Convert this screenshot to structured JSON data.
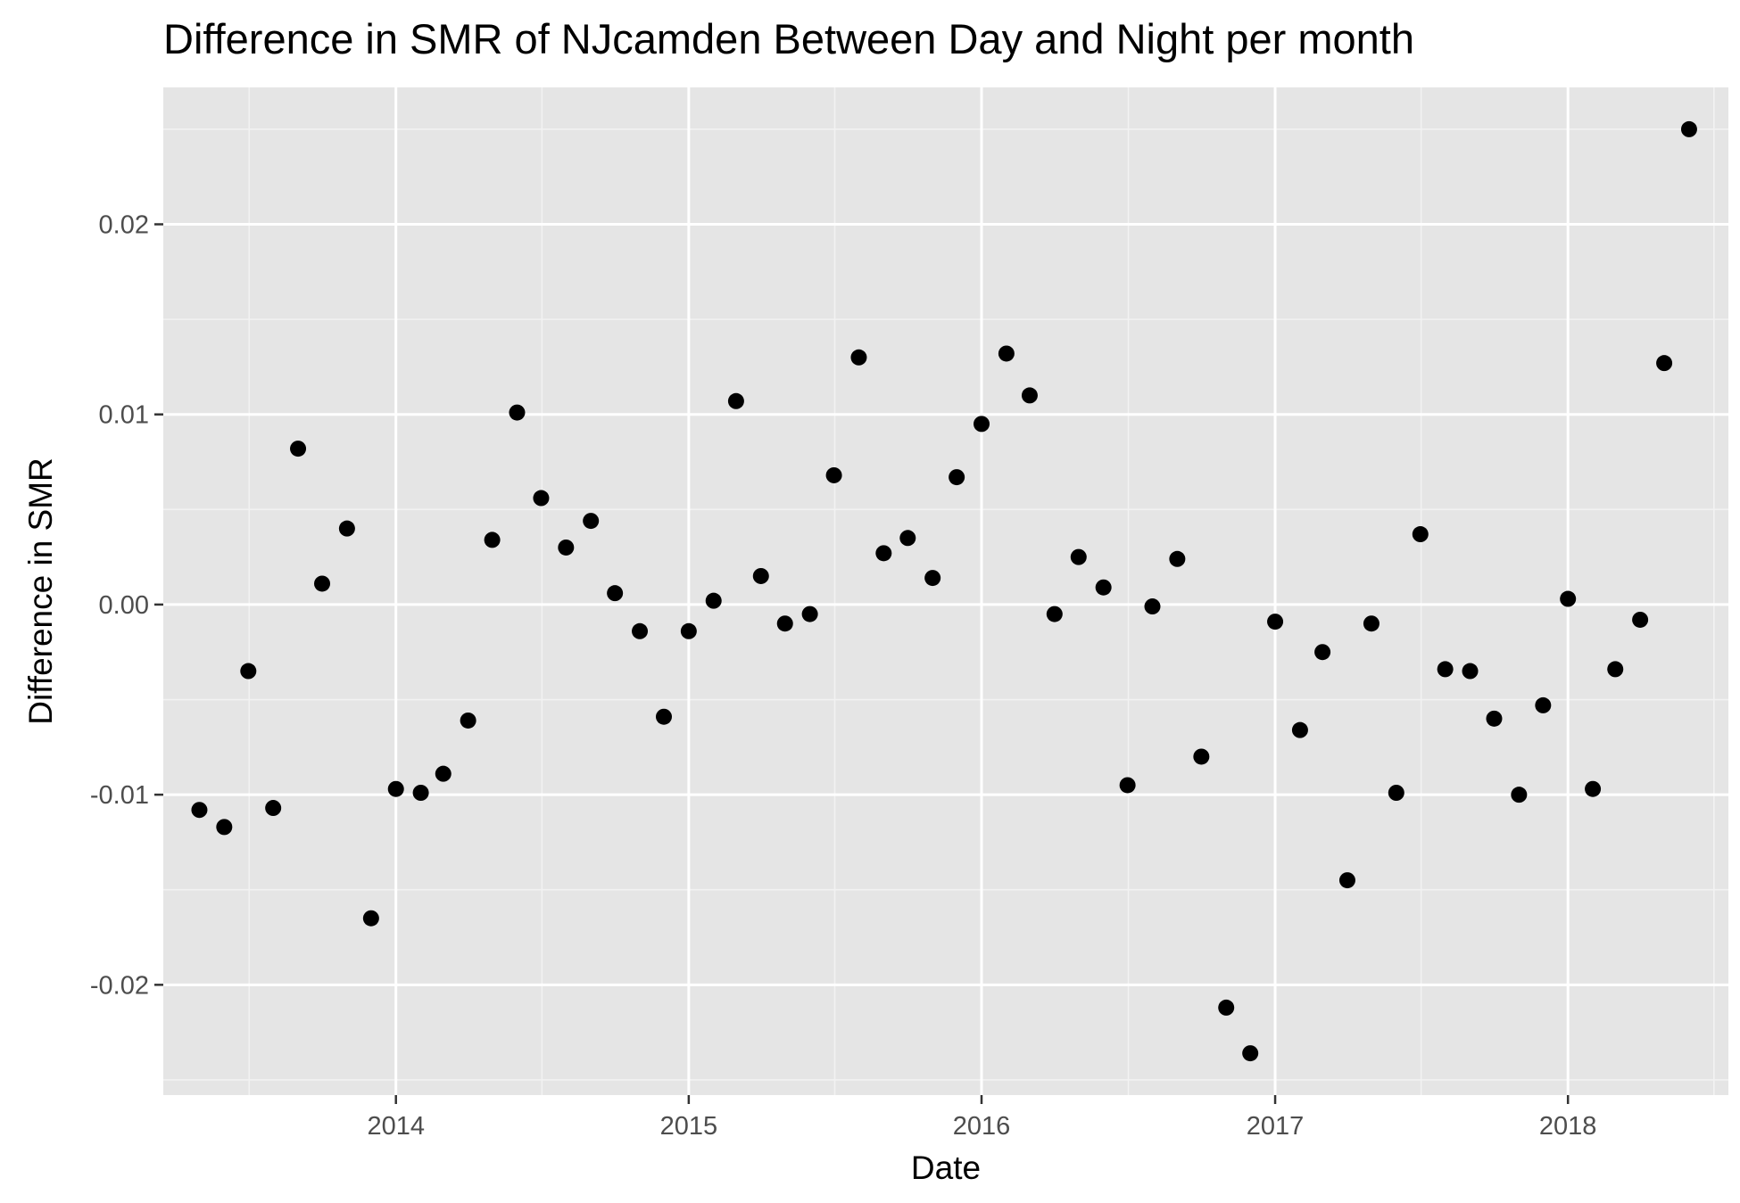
{
  "chart_data": {
    "type": "scatter",
    "title": "Difference in SMR of NJcamden Between Day and Night per month",
    "xlabel": "Date",
    "ylabel": "Difference in SMR",
    "x_tick_labels": [
      "2014",
      "2015",
      "2016",
      "2017",
      "2018"
    ],
    "y_tick_labels": [
      "-0.02",
      "-0.01",
      "0.00",
      "0.01",
      "0.02"
    ],
    "y_ticks": [
      -0.02,
      -0.01,
      0.0,
      0.01,
      0.02
    ],
    "xlim": [
      "2013-03-17",
      "2018-07-20"
    ],
    "ylim": [
      -0.0258,
      0.0272
    ],
    "grid": true,
    "point_color": "#000000",
    "panel_background": "#e5e5e5",
    "series": [
      {
        "name": "SMR difference",
        "points": [
          {
            "x": "2013-05-01",
            "y": -0.0108
          },
          {
            "x": "2013-06-01",
            "y": -0.0117
          },
          {
            "x": "2013-07-01",
            "y": -0.0035
          },
          {
            "x": "2013-08-01",
            "y": -0.0107
          },
          {
            "x": "2013-09-01",
            "y": 0.0082
          },
          {
            "x": "2013-10-01",
            "y": 0.0011
          },
          {
            "x": "2013-11-01",
            "y": 0.004
          },
          {
            "x": "2013-12-01",
            "y": -0.0165
          },
          {
            "x": "2014-01-01",
            "y": -0.0097
          },
          {
            "x": "2014-02-01",
            "y": -0.0099
          },
          {
            "x": "2014-03-01",
            "y": -0.0089
          },
          {
            "x": "2014-04-01",
            "y": -0.0061
          },
          {
            "x": "2014-05-01",
            "y": 0.0034
          },
          {
            "x": "2014-06-01",
            "y": 0.0101
          },
          {
            "x": "2014-07-01",
            "y": 0.0056
          },
          {
            "x": "2014-08-01",
            "y": 0.003
          },
          {
            "x": "2014-09-01",
            "y": 0.0044
          },
          {
            "x": "2014-10-01",
            "y": 0.0006
          },
          {
            "x": "2014-11-01",
            "y": -0.0014
          },
          {
            "x": "2014-12-01",
            "y": -0.0059
          },
          {
            "x": "2015-01-01",
            "y": -0.0014
          },
          {
            "x": "2015-02-01",
            "y": 0.0002
          },
          {
            "x": "2015-03-01",
            "y": 0.0107
          },
          {
            "x": "2015-04-01",
            "y": 0.0015
          },
          {
            "x": "2015-05-01",
            "y": -0.001
          },
          {
            "x": "2015-06-01",
            "y": -0.0005
          },
          {
            "x": "2015-07-01",
            "y": 0.0068
          },
          {
            "x": "2015-08-01",
            "y": 0.013
          },
          {
            "x": "2015-09-01",
            "y": 0.0027
          },
          {
            "x": "2015-10-01",
            "y": 0.0035
          },
          {
            "x": "2015-11-01",
            "y": 0.0014
          },
          {
            "x": "2015-12-01",
            "y": 0.0067
          },
          {
            "x": "2016-01-01",
            "y": 0.0095
          },
          {
            "x": "2016-02-01",
            "y": 0.0132
          },
          {
            "x": "2016-03-01",
            "y": 0.011
          },
          {
            "x": "2016-04-01",
            "y": -0.0005
          },
          {
            "x": "2016-05-01",
            "y": 0.0025
          },
          {
            "x": "2016-06-01",
            "y": 0.0009
          },
          {
            "x": "2016-07-01",
            "y": -0.0095
          },
          {
            "x": "2016-08-01",
            "y": -0.0001
          },
          {
            "x": "2016-09-01",
            "y": 0.0024
          },
          {
            "x": "2016-10-01",
            "y": -0.008
          },
          {
            "x": "2016-11-01",
            "y": -0.0212
          },
          {
            "x": "2016-12-01",
            "y": -0.0236
          },
          {
            "x": "2017-01-01",
            "y": -0.0009
          },
          {
            "x": "2017-02-01",
            "y": -0.0066
          },
          {
            "x": "2017-03-01",
            "y": -0.0025
          },
          {
            "x": "2017-04-01",
            "y": -0.0145
          },
          {
            "x": "2017-05-01",
            "y": -0.001
          },
          {
            "x": "2017-06-01",
            "y": -0.0099
          },
          {
            "x": "2017-07-01",
            "y": 0.0037
          },
          {
            "x": "2017-08-01",
            "y": -0.0034
          },
          {
            "x": "2017-09-01",
            "y": -0.0035
          },
          {
            "x": "2017-10-01",
            "y": -0.006
          },
          {
            "x": "2017-11-01",
            "y": -0.01
          },
          {
            "x": "2017-12-01",
            "y": -0.0053
          },
          {
            "x": "2018-01-01",
            "y": 0.0003
          },
          {
            "x": "2018-02-01",
            "y": -0.0097
          },
          {
            "x": "2018-03-01",
            "y": -0.0034
          },
          {
            "x": "2018-04-01",
            "y": -0.0008
          },
          {
            "x": "2018-05-01",
            "y": 0.0127
          },
          {
            "x": "2018-06-01",
            "y": 0.025
          }
        ]
      }
    ]
  }
}
